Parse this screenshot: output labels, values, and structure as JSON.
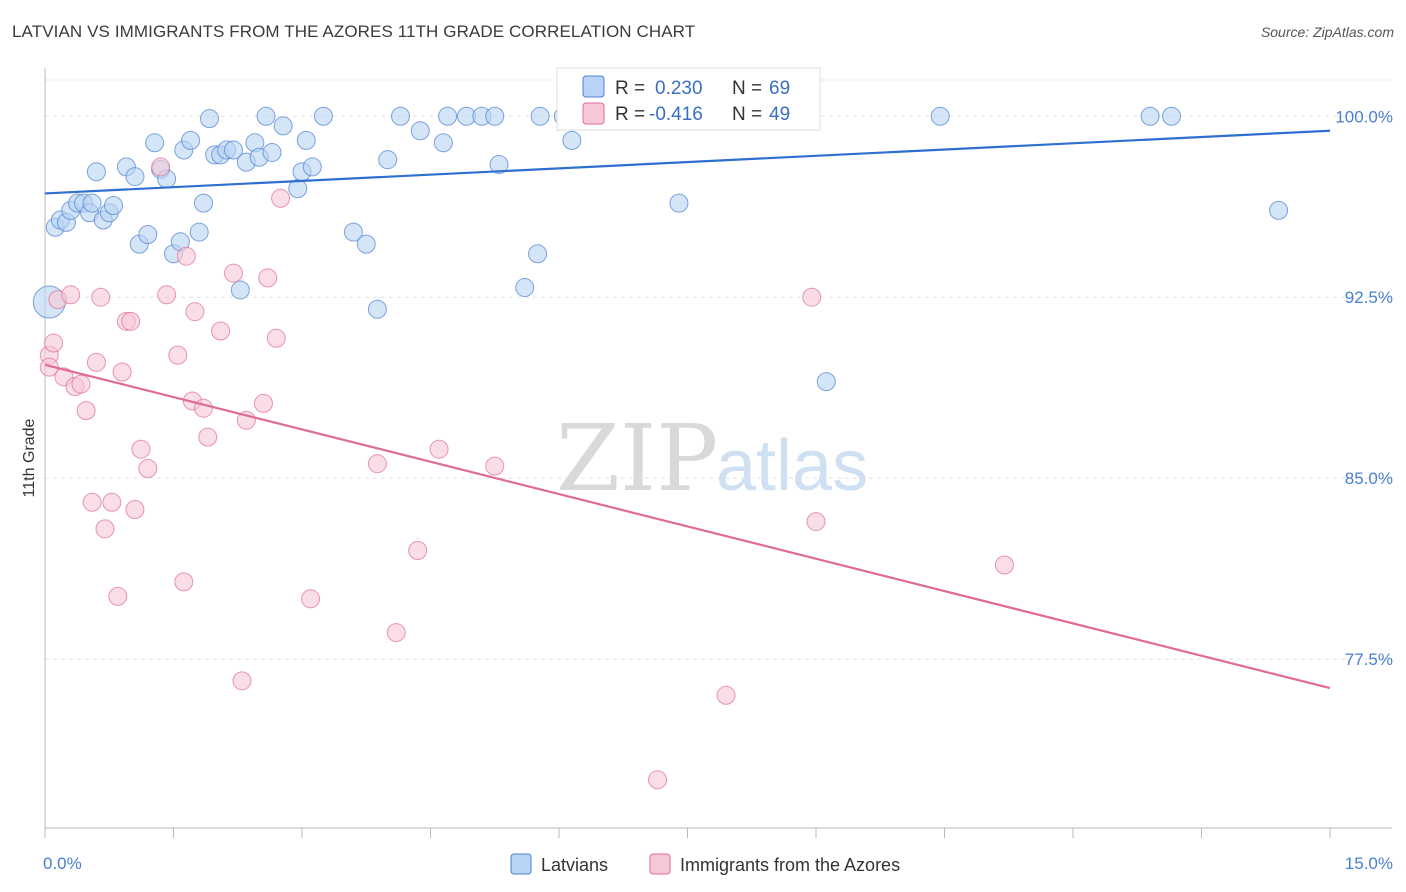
{
  "title": "LATVIAN VS IMMIGRANTS FROM THE AZORES 11TH GRADE CORRELATION CHART",
  "source": "Source: ZipAtlas.com",
  "watermark": {
    "zip": "ZIP",
    "atlas": "atlas"
  },
  "colors": {
    "blue": "#4a7fd0",
    "blue_fill": "#b9d3f4",
    "blue_line": "#2f6fd1",
    "pink": "#e06b96",
    "pink_fill": "#f7c8d7",
    "pink_line": "#e06b96"
  },
  "legend": {
    "r_label": "R =",
    "n_label": "N =",
    "series": [
      {
        "r": "0.230",
        "n": "69"
      },
      {
        "r": "-0.416",
        "n": "49"
      }
    ]
  },
  "bottom_legend": [
    "Latvians",
    "Immigrants from the Azores"
  ],
  "chart_data": {
    "type": "scatter",
    "title": "LATVIAN VS IMMIGRANTS FROM THE AZORES 11TH GRADE CORRELATION CHART",
    "xlabel": "",
    "ylabel": "11th Grade",
    "xlim": [
      0,
      15
    ],
    "ylim": [
      70.5,
      102
    ],
    "x_tick_labels": [
      "0.0%",
      "15.0%"
    ],
    "y_ticks": [
      77.5,
      85.0,
      92.5,
      100.0
    ],
    "y_tick_labels": [
      "77.5%",
      "85.0%",
      "92.5%",
      "100.0%"
    ],
    "grid": true,
    "legend_position": "top-center",
    "series": [
      {
        "name": "Latvians",
        "r": 0.23,
        "n": 69,
        "trend": [
          [
            0,
            96.8
          ],
          [
            15,
            99.4
          ]
        ],
        "points": [
          [
            0.05,
            92.3
          ],
          [
            0.12,
            95.4
          ],
          [
            0.18,
            95.7
          ],
          [
            0.25,
            95.6
          ],
          [
            0.3,
            96.1
          ],
          [
            0.38,
            96.4
          ],
          [
            0.45,
            96.4
          ],
          [
            0.52,
            96.0
          ],
          [
            0.55,
            96.4
          ],
          [
            0.6,
            97.7
          ],
          [
            0.68,
            95.7
          ],
          [
            0.75,
            96.0
          ],
          [
            0.8,
            96.3
          ],
          [
            0.95,
            97.9
          ],
          [
            1.05,
            97.5
          ],
          [
            1.1,
            94.7
          ],
          [
            1.2,
            95.1
          ],
          [
            1.28,
            98.9
          ],
          [
            1.35,
            97.8
          ],
          [
            1.42,
            97.4
          ],
          [
            1.5,
            94.3
          ],
          [
            1.58,
            94.8
          ],
          [
            1.62,
            98.6
          ],
          [
            1.7,
            99.0
          ],
          [
            1.8,
            95.2
          ],
          [
            1.85,
            96.4
          ],
          [
            1.92,
            99.9
          ],
          [
            1.98,
            98.4
          ],
          [
            2.05,
            98.4
          ],
          [
            2.12,
            98.6
          ],
          [
            2.2,
            98.6
          ],
          [
            2.28,
            92.8
          ],
          [
            2.35,
            98.1
          ],
          [
            2.45,
            98.9
          ],
          [
            2.5,
            98.3
          ],
          [
            2.58,
            100.0
          ],
          [
            2.65,
            98.5
          ],
          [
            2.78,
            99.6
          ],
          [
            2.95,
            97.0
          ],
          [
            3.0,
            97.7
          ],
          [
            3.05,
            99.0
          ],
          [
            3.12,
            97.9
          ],
          [
            3.25,
            100.0
          ],
          [
            3.6,
            95.2
          ],
          [
            3.75,
            94.7
          ],
          [
            3.88,
            92.0
          ],
          [
            4.0,
            98.2
          ],
          [
            4.15,
            100.0
          ],
          [
            4.38,
            99.4
          ],
          [
            4.65,
            98.9
          ],
          [
            4.7,
            100.0
          ],
          [
            4.92,
            100.0
          ],
          [
            5.1,
            100.0
          ],
          [
            5.25,
            100.0
          ],
          [
            5.3,
            98.0
          ],
          [
            5.6,
            92.9
          ],
          [
            5.75,
            94.3
          ],
          [
            5.78,
            100.0
          ],
          [
            6.05,
            100.0
          ],
          [
            6.15,
            99.0
          ],
          [
            6.55,
            100.0
          ],
          [
            7.4,
            96.4
          ],
          [
            7.82,
            100.0
          ],
          [
            8.4,
            100.0
          ],
          [
            9.12,
            89.0
          ],
          [
            10.45,
            100.0
          ],
          [
            12.9,
            100.0
          ],
          [
            13.15,
            100.0
          ],
          [
            14.4,
            96.1
          ]
        ]
      },
      {
        "name": "Immigrants from the Azores",
        "r": -0.416,
        "n": 49,
        "trend": [
          [
            0,
            89.7
          ],
          [
            15,
            76.3
          ]
        ],
        "points": [
          [
            0.05,
            90.1
          ],
          [
            0.1,
            90.6
          ],
          [
            0.15,
            92.4
          ],
          [
            0.22,
            89.2
          ],
          [
            0.3,
            92.6
          ],
          [
            0.35,
            88.8
          ],
          [
            0.42,
            88.9
          ],
          [
            0.48,
            87.8
          ],
          [
            0.55,
            84.0
          ],
          [
            0.6,
            89.8
          ],
          [
            0.65,
            92.5
          ],
          [
            0.7,
            82.9
          ],
          [
            0.78,
            84.0
          ],
          [
            0.85,
            80.1
          ],
          [
            0.9,
            89.4
          ],
          [
            0.95,
            91.5
          ],
          [
            1.0,
            91.5
          ],
          [
            1.05,
            83.7
          ],
          [
            1.12,
            86.2
          ],
          [
            1.2,
            85.4
          ],
          [
            1.35,
            97.9
          ],
          [
            1.42,
            92.6
          ],
          [
            1.55,
            90.1
          ],
          [
            1.62,
            80.7
          ],
          [
            1.65,
            94.2
          ],
          [
            1.72,
            88.2
          ],
          [
            1.75,
            91.9
          ],
          [
            1.85,
            87.9
          ],
          [
            1.9,
            86.7
          ],
          [
            2.05,
            91.1
          ],
          [
            2.2,
            93.5
          ],
          [
            2.3,
            76.6
          ],
          [
            2.35,
            87.4
          ],
          [
            2.55,
            88.1
          ],
          [
            2.6,
            93.3
          ],
          [
            2.7,
            90.8
          ],
          [
            2.75,
            96.6
          ],
          [
            3.1,
            80.0
          ],
          [
            3.88,
            85.6
          ],
          [
            4.1,
            78.6
          ],
          [
            4.35,
            82.0
          ],
          [
            4.6,
            86.2
          ],
          [
            5.25,
            85.5
          ],
          [
            7.15,
            72.5
          ],
          [
            7.95,
            76.0
          ],
          [
            8.95,
            92.5
          ],
          [
            9.0,
            83.2
          ],
          [
            11.2,
            81.4
          ],
          [
            0.05,
            89.6
          ]
        ]
      }
    ]
  }
}
